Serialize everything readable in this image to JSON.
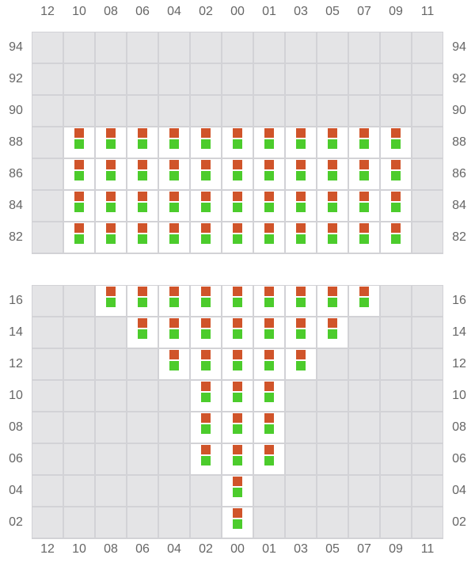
{
  "columns": [
    "12",
    "10",
    "08",
    "06",
    "04",
    "02",
    "00",
    "01",
    "03",
    "05",
    "07",
    "09",
    "11"
  ],
  "colors": {
    "top_marker": "#d0542a",
    "bottom_marker": "#4ccc2c",
    "empty_cell": "#e4e4e6",
    "active_cell": "#ffffff"
  },
  "grids": [
    {
      "rows": [
        {
          "label": "94",
          "active": []
        },
        {
          "label": "92",
          "active": []
        },
        {
          "label": "90",
          "active": []
        },
        {
          "label": "88",
          "active": [
            "10",
            "08",
            "06",
            "04",
            "02",
            "00",
            "01",
            "03",
            "05",
            "07",
            "09"
          ]
        },
        {
          "label": "86",
          "active": [
            "10",
            "08",
            "06",
            "04",
            "02",
            "00",
            "01",
            "03",
            "05",
            "07",
            "09"
          ]
        },
        {
          "label": "84",
          "active": [
            "10",
            "08",
            "06",
            "04",
            "02",
            "00",
            "01",
            "03",
            "05",
            "07",
            "09"
          ]
        },
        {
          "label": "82",
          "active": [
            "10",
            "08",
            "06",
            "04",
            "02",
            "00",
            "01",
            "03",
            "05",
            "07",
            "09"
          ]
        }
      ]
    },
    {
      "rows": [
        {
          "label": "16",
          "active": [
            "08",
            "06",
            "04",
            "02",
            "00",
            "01",
            "03",
            "05",
            "07"
          ]
        },
        {
          "label": "14",
          "active": [
            "06",
            "04",
            "02",
            "00",
            "01",
            "03",
            "05"
          ]
        },
        {
          "label": "12",
          "active": [
            "04",
            "02",
            "00",
            "01",
            "03"
          ]
        },
        {
          "label": "10",
          "active": [
            "02",
            "00",
            "01"
          ]
        },
        {
          "label": "08",
          "active": [
            "02",
            "00",
            "01"
          ]
        },
        {
          "label": "06",
          "active": [
            "02",
            "00",
            "01"
          ]
        },
        {
          "label": "04",
          "active": [
            "00"
          ]
        },
        {
          "label": "02",
          "active": [
            "00"
          ]
        }
      ]
    }
  ]
}
